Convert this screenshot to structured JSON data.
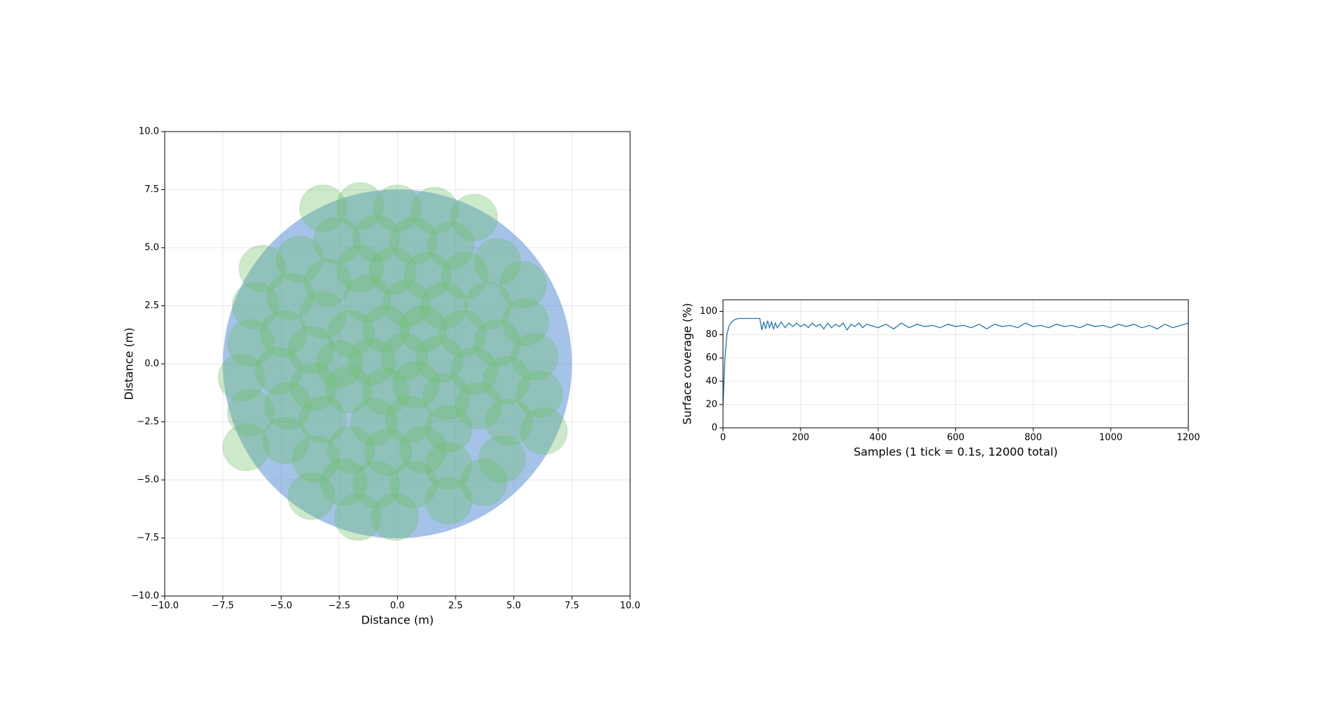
{
  "chart_data": [
    {
      "type": "circles",
      "xlabel": "Distance (m)",
      "ylabel": "Distance (m)",
      "xlim": [
        -10,
        10
      ],
      "ylim": [
        -10,
        10
      ],
      "xticks": [
        {
          "value": -10,
          "label": "−10.0"
        },
        {
          "value": -7.5,
          "label": "−7.5"
        },
        {
          "value": -5,
          "label": "−5.0"
        },
        {
          "value": -2.5,
          "label": "−2.5"
        },
        {
          "value": 0,
          "label": "0.0"
        },
        2.5,
        {
          "value": 5,
          "label": "5.0"
        },
        7.5,
        {
          "value": 10,
          "label": "10.0"
        }
      ],
      "yticks": [
        {
          "value": -10,
          "label": "−10.0"
        },
        {
          "value": -7.5,
          "label": "−7.5"
        },
        {
          "value": -5,
          "label": "−5.0"
        },
        {
          "value": -2.5,
          "label": "−2.5"
        },
        {
          "value": 0,
          "label": "0.0"
        },
        2.5,
        {
          "value": 5,
          "label": "5.0"
        },
        7.5,
        {
          "value": 10,
          "label": "10.0"
        }
      ],
      "grid": true,
      "region_center": [
        0,
        0
      ],
      "region_radius": 7.5,
      "region_color": "#5b8fd6",
      "radius": 1.0,
      "color": "#6cbf68",
      "x": [
        -3.2,
        -1.6,
        0,
        1.6,
        3.3,
        -2.6,
        -0.9,
        0.7,
        2.3,
        -5.8,
        -4.2,
        -1.6,
        -3.0,
        -0.2,
        1.3,
        2.9,
        4.3,
        5.4,
        -6.1,
        -4.6,
        -3.2,
        -1.3,
        0.4,
        2.0,
        3.9,
        5.5,
        -6.3,
        -4.9,
        -2.0,
        -0.5,
        1.1,
        2.8,
        4.3,
        5.9,
        -6.7,
        -5.1,
        -3.7,
        -2.5,
        -1.1,
        0.3,
        1.8,
        3.3,
        4.7,
        -6.3,
        -4.7,
        -3.6,
        -2.1,
        -0.5,
        0.8,
        2.1,
        3.5,
        6.1,
        -6.5,
        -4.8,
        -3.2,
        -1.0,
        0.5,
        2.2,
        4.8,
        6.3,
        -3.5,
        -2.0,
        -0.4,
        1.1,
        2.2,
        4.5,
        -3.7,
        -2.3,
        -0.9,
        0.7,
        3.7,
        -1.7,
        -0.1,
        2.2
      ],
      "y": [
        6.7,
        6.8,
        6.7,
        6.6,
        6.3,
        5.3,
        5.4,
        5.3,
        5.1,
        4.1,
        4.5,
        4.1,
        3.5,
        4.0,
        3.8,
        3.8,
        4.4,
        3.4,
        2.5,
        2.9,
        2.1,
        2.8,
        2.6,
        2.5,
        2.5,
        1.8,
        0.9,
        1.3,
        1.3,
        1.5,
        1.5,
        1.3,
        0.9,
        0.3,
        -0.6,
        -0.3,
        0.6,
        0,
        0.1,
        0.3,
        0.2,
        -0.3,
        -0.7,
        -2.1,
        -1.8,
        -1.0,
        -1.1,
        -1.2,
        -0.9,
        -1.4,
        -1.8,
        -1.3,
        -3.6,
        -3.3,
        -2.4,
        -2.5,
        -2.4,
        -2.8,
        -2.5,
        -2.9,
        -4.1,
        -3.7,
        -3.8,
        -3.7,
        -4.4,
        -4.1,
        -5.7,
        -5.1,
        -5.2,
        -5.2,
        -5.1,
        -6.6,
        -6.6,
        -5.9
      ]
    },
    {
      "type": "line",
      "xlabel": "Samples (1 tick = 0.1s, 12000 total)",
      "ylabel": "Surface coverage (%)",
      "xlim": [
        0,
        1200
      ],
      "ylim": [
        0,
        110
      ],
      "xticks": [
        0,
        200,
        400,
        600,
        800,
        1000,
        1200
      ],
      "yticks": [
        0,
        20,
        40,
        60,
        80,
        100
      ],
      "grid": true,
      "color": "#1f77b4",
      "x": [
        0,
        5,
        10,
        15,
        20,
        30,
        40,
        50,
        60,
        70,
        80,
        90,
        95,
        100,
        105,
        110,
        115,
        120,
        125,
        130,
        135,
        140,
        150,
        160,
        170,
        180,
        190,
        200,
        210,
        220,
        230,
        240,
        250,
        260,
        270,
        280,
        290,
        300,
        310,
        320,
        330,
        340,
        350,
        360,
        370,
        380,
        390,
        400,
        420,
        440,
        460,
        480,
        500,
        520,
        540,
        560,
        580,
        600,
        620,
        640,
        660,
        680,
        700,
        720,
        740,
        760,
        780,
        800,
        820,
        840,
        860,
        880,
        900,
        920,
        940,
        960,
        980,
        1000,
        1020,
        1040,
        1060,
        1080,
        1100,
        1120,
        1140,
        1160,
        1180,
        1200
      ],
      "values": [
        20,
        60,
        80,
        87,
        90,
        93,
        94,
        94,
        94,
        94,
        94,
        94,
        94,
        84,
        91,
        85,
        92,
        86,
        91,
        85,
        90,
        86,
        91,
        86,
        90,
        87,
        90,
        87,
        89,
        86,
        90,
        87,
        89,
        85,
        90,
        86,
        89,
        87,
        90,
        84,
        89,
        87,
        90,
        86,
        89,
        88,
        87,
        86,
        89,
        85,
        90,
        86,
        89,
        87,
        88,
        86,
        89,
        87,
        88,
        86,
        89,
        85,
        89,
        87,
        88,
        86,
        90,
        87,
        88,
        86,
        89,
        87,
        88,
        86,
        89,
        87,
        88,
        86,
        89,
        87,
        89,
        86,
        88,
        85,
        89,
        86,
        88,
        90
      ]
    }
  ]
}
